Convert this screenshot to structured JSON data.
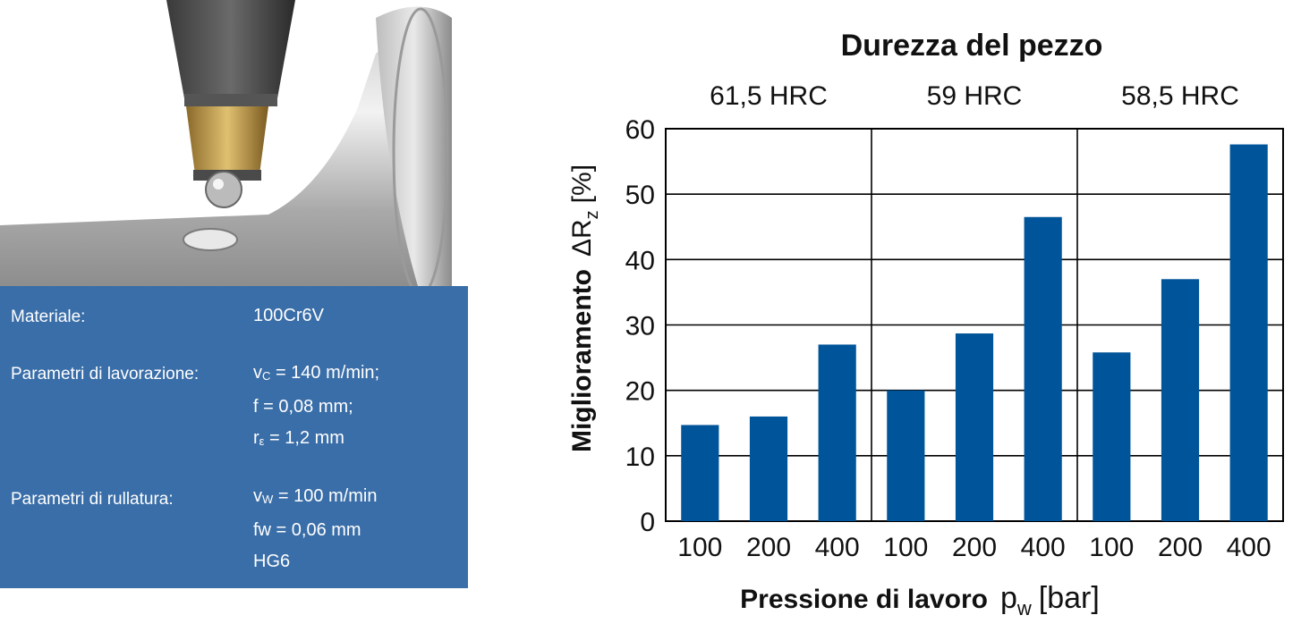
{
  "specs": {
    "material_label": "Materiale:",
    "material_value": "100Cr6V",
    "machining_label": "Parametri di lavorazione:",
    "machining_vc_symbol": "v",
    "machining_vc_sub": "C",
    "machining_vc_value": " = 140 m/min;",
    "machining_f": "f = 0,08 mm;",
    "machining_r_symbol": "r",
    "machining_r_sub": "ε",
    "machining_r_value": " = 1,2 mm",
    "rolling_label": "Parametri di rullatura:",
    "rolling_vw_symbol": "v",
    "rolling_vw_sub": "W",
    "rolling_vw_value": " = 100 m/min",
    "rolling_fw": "fw = 0,06 mm",
    "rolling_tool": "HG6"
  },
  "colors": {
    "bar": "#005499",
    "panel": "#3a6ea8"
  },
  "chart_data": {
    "type": "bar",
    "title": "Durezza del pezzo",
    "groups": [
      "61,5 HRC",
      "59 HRC",
      "58,5 HRC"
    ],
    "categories": [
      "100",
      "200",
      "400"
    ],
    "series": [
      {
        "group": "61,5 HRC",
        "values": [
          14.7,
          16,
          27
        ]
      },
      {
        "group": "59 HRC",
        "values": [
          20,
          28.7,
          46.5
        ]
      },
      {
        "group": "58,5 HRC",
        "values": [
          25.8,
          37,
          57.6
        ]
      }
    ],
    "ylabel_prefix": "Miglioramento",
    "ylabel_symbol": "ΔR",
    "ylabel_sub": "z",
    "ylabel_unit": "[%]",
    "xlabel_text": "Pressione di lavoro",
    "xlabel_symbol": "p",
    "xlabel_sub": "w",
    "xlabel_unit": "[bar]",
    "ylim": [
      0,
      60
    ],
    "yticks": [
      0,
      10,
      20,
      30,
      40,
      50,
      60
    ],
    "grid": true
  }
}
